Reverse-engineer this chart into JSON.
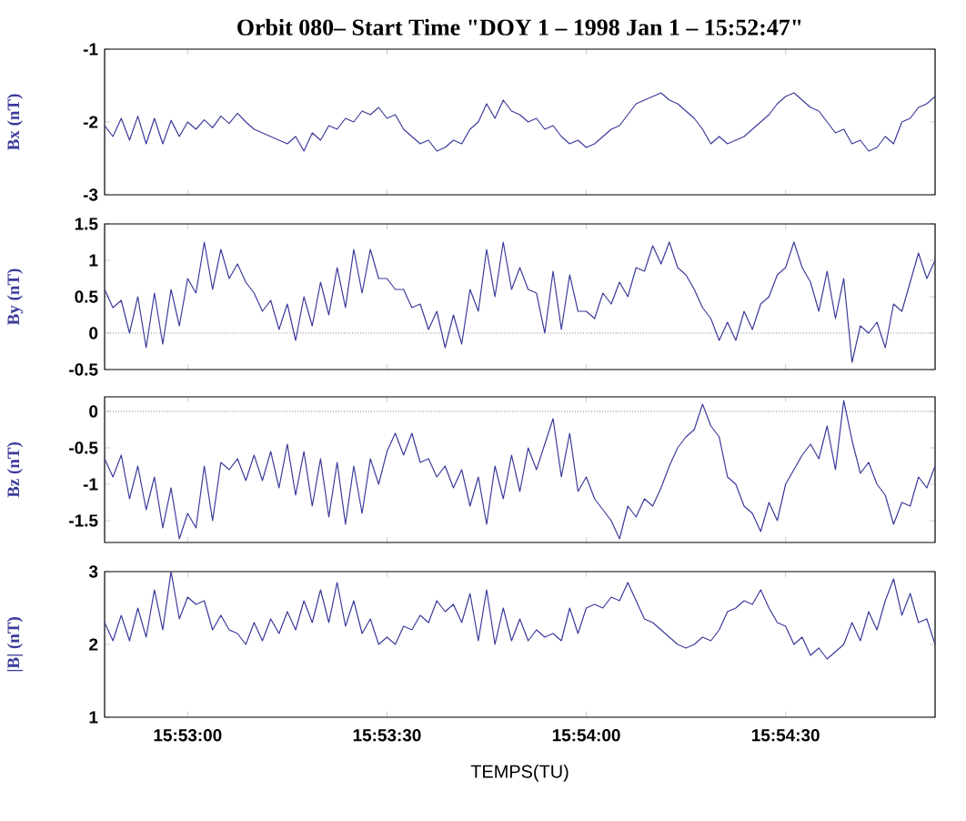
{
  "chart_data": [
    {
      "type": "line",
      "title": "Orbit 080– Start Time \"DOY 1 – 1998 Jan 1 – 15:52:47\"",
      "ylabel": "Bx (nT)",
      "color": "#3b3b9b",
      "tick_labels": "y",
      "xlim": [
        15.879861,
        15.914583
      ],
      "ylim": [
        -3,
        -1
      ],
      "yticks": [
        -3,
        -2,
        -1
      ],
      "xticks": [
        {
          "value": 15.883333,
          "label": null
        },
        {
          "value": 15.891667,
          "label": null
        },
        {
          "value": 15.9,
          "label": null
        },
        {
          "value": 15.908333,
          "label": null
        }
      ],
      "x": [
        15.879861,
        15.880208,
        15.880556,
        15.880903,
        15.88125,
        15.881597,
        15.881944,
        15.882292,
        15.882639,
        15.882986,
        15.883333,
        15.883681,
        15.884028,
        15.884375,
        15.884722,
        15.885069,
        15.885417,
        15.885764,
        15.886111,
        15.886458,
        15.886806,
        15.887153,
        15.8875,
        15.887847,
        15.888194,
        15.888542,
        15.888889,
        15.889236,
        15.889583,
        15.889931,
        15.890278,
        15.890625,
        15.890972,
        15.891319,
        15.891667,
        15.892014,
        15.892361,
        15.892708,
        15.893056,
        15.893403,
        15.89375,
        15.894097,
        15.894444,
        15.894792,
        15.895139,
        15.895486,
        15.895833,
        15.896181,
        15.896528,
        15.896875,
        15.897222,
        15.897569,
        15.897917,
        15.898264,
        15.898611,
        15.898958,
        15.899306,
        15.899653,
        15.9,
        15.900347,
        15.900694,
        15.901042,
        15.901389,
        15.901736,
        15.902083,
        15.902431,
        15.902778,
        15.903125,
        15.903472,
        15.903819,
        15.904167,
        15.904514,
        15.904861,
        15.905208,
        15.905556,
        15.905903,
        15.90625,
        15.906597,
        15.906944,
        15.907292,
        15.907639,
        15.907986,
        15.908333,
        15.908681,
        15.909028,
        15.909375,
        15.909722,
        15.910069,
        15.910417,
        15.910764,
        15.911111,
        15.911458,
        15.911806,
        15.912153,
        15.9125,
        15.912847,
        15.913194,
        15.913542,
        15.913889,
        15.914236,
        15.914583
      ],
      "values": [
        -2.05,
        -2.2,
        -1.95,
        -2.25,
        -1.92,
        -2.3,
        -1.95,
        -2.3,
        -1.98,
        -2.2,
        -2.0,
        -2.1,
        -1.97,
        -2.08,
        -1.92,
        -2.02,
        -1.88,
        -2.0,
        -2.1,
        -2.15,
        -2.2,
        -2.25,
        -2.3,
        -2.2,
        -2.4,
        -2.15,
        -2.25,
        -2.05,
        -2.1,
        -1.95,
        -2.0,
        -1.85,
        -1.9,
        -1.8,
        -1.95,
        -1.9,
        -2.1,
        -2.2,
        -2.3,
        -2.25,
        -2.4,
        -2.35,
        -2.25,
        -2.3,
        -2.1,
        -2.0,
        -1.75,
        -1.95,
        -1.7,
        -1.85,
        -1.9,
        -2.0,
        -1.95,
        -2.1,
        -2.05,
        -2.2,
        -2.3,
        -2.25,
        -2.35,
        -2.3,
        -2.2,
        -2.1,
        -2.05,
        -1.9,
        -1.75,
        -1.7,
        -1.65,
        -1.6,
        -1.7,
        -1.75,
        -1.85,
        -1.95,
        -2.1,
        -2.3,
        -2.2,
        -2.3,
        -2.25,
        -2.2,
        -2.1,
        -2.0,
        -1.9,
        -1.75,
        -1.65,
        -1.6,
        -1.7,
        -1.8,
        -1.85,
        -2.0,
        -2.15,
        -2.1,
        -2.3,
        -2.25,
        -2.4,
        -2.35,
        -2.2,
        -2.3,
        -2.0,
        -1.95,
        -1.8,
        -1.75,
        -1.65
      ]
    },
    {
      "type": "line",
      "ylabel": "By (nT)",
      "color": "#3b3b9b",
      "tick_labels": "y",
      "xlim": [
        15.879861,
        15.914583
      ],
      "ylim": [
        -0.5,
        1.5
      ],
      "yticks": [
        -0.5,
        0,
        0.5,
        1,
        1.5
      ],
      "xticks": [
        {
          "value": 15.883333,
          "label": null
        },
        {
          "value": 15.891667,
          "label": null
        },
        {
          "value": 15.9,
          "label": null
        },
        {
          "value": 15.908333,
          "label": null
        }
      ],
      "ref_lines": [
        {
          "axis": "y",
          "value": 0,
          "color": "#808080",
          "line_style": "dotted"
        }
      ],
      "x": [
        15.879861,
        15.880208,
        15.880556,
        15.880903,
        15.88125,
        15.881597,
        15.881944,
        15.882292,
        15.882639,
        15.882986,
        15.883333,
        15.883681,
        15.884028,
        15.884375,
        15.884722,
        15.885069,
        15.885417,
        15.885764,
        15.886111,
        15.886458,
        15.886806,
        15.887153,
        15.8875,
        15.887847,
        15.888194,
        15.888542,
        15.888889,
        15.889236,
        15.889583,
        15.889931,
        15.890278,
        15.890625,
        15.890972,
        15.891319,
        15.891667,
        15.892014,
        15.892361,
        15.892708,
        15.893056,
        15.893403,
        15.89375,
        15.894097,
        15.894444,
        15.894792,
        15.895139,
        15.895486,
        15.895833,
        15.896181,
        15.896528,
        15.896875,
        15.897222,
        15.897569,
        15.897917,
        15.898264,
        15.898611,
        15.898958,
        15.899306,
        15.899653,
        15.9,
        15.900347,
        15.900694,
        15.901042,
        15.901389,
        15.901736,
        15.902083,
        15.902431,
        15.902778,
        15.903125,
        15.903472,
        15.903819,
        15.904167,
        15.904514,
        15.904861,
        15.905208,
        15.905556,
        15.905903,
        15.90625,
        15.906597,
        15.906944,
        15.907292,
        15.907639,
        15.907986,
        15.908333,
        15.908681,
        15.909028,
        15.909375,
        15.909722,
        15.910069,
        15.910417,
        15.910764,
        15.911111,
        15.911458,
        15.911806,
        15.912153,
        15.9125,
        15.912847,
        15.913194,
        15.913542,
        15.913889,
        15.914236,
        15.914583
      ],
      "values": [
        0.6,
        0.35,
        0.45,
        0.0,
        0.5,
        -0.2,
        0.55,
        -0.15,
        0.6,
        0.1,
        0.75,
        0.55,
        1.25,
        0.6,
        1.15,
        0.75,
        0.95,
        0.7,
        0.55,
        0.3,
        0.45,
        0.05,
        0.4,
        -0.1,
        0.5,
        0.1,
        0.7,
        0.25,
        0.9,
        0.35,
        1.15,
        0.55,
        1.15,
        0.75,
        0.75,
        0.6,
        0.6,
        0.35,
        0.4,
        0.05,
        0.3,
        -0.2,
        0.25,
        -0.15,
        0.6,
        0.3,
        1.15,
        0.5,
        1.25,
        0.6,
        0.9,
        0.6,
        0.55,
        0.0,
        0.85,
        0.05,
        0.8,
        0.3,
        0.3,
        0.2,
        0.55,
        0.4,
        0.7,
        0.5,
        0.9,
        0.85,
        1.2,
        0.95,
        1.25,
        0.9,
        0.8,
        0.6,
        0.35,
        0.2,
        -0.1,
        0.15,
        -0.1,
        0.3,
        0.05,
        0.4,
        0.5,
        0.8,
        0.9,
        1.25,
        0.9,
        0.7,
        0.3,
        0.85,
        0.2,
        0.75,
        -0.4,
        0.1,
        0.0,
        0.15,
        -0.2,
        0.4,
        0.3,
        0.7,
        1.1,
        0.75,
        1.0
      ]
    },
    {
      "type": "line",
      "ylabel": "Bz (nT)",
      "color": "#3b3b9b",
      "tick_labels": "y",
      "xlim": [
        15.879861,
        15.914583
      ],
      "ylim": [
        -1.8,
        0.2
      ],
      "yticks": [
        -1.5,
        -1,
        -0.5,
        0
      ],
      "xticks": [
        {
          "value": 15.883333,
          "label": null
        },
        {
          "value": 15.891667,
          "label": null
        },
        {
          "value": 15.9,
          "label": null
        },
        {
          "value": 15.908333,
          "label": null
        }
      ],
      "ref_lines": [
        {
          "axis": "y",
          "value": 0,
          "color": "#808080",
          "line_style": "dotted"
        }
      ],
      "x": [
        15.879861,
        15.880208,
        15.880556,
        15.880903,
        15.88125,
        15.881597,
        15.881944,
        15.882292,
        15.882639,
        15.882986,
        15.883333,
        15.883681,
        15.884028,
        15.884375,
        15.884722,
        15.885069,
        15.885417,
        15.885764,
        15.886111,
        15.886458,
        15.886806,
        15.887153,
        15.8875,
        15.887847,
        15.888194,
        15.888542,
        15.888889,
        15.889236,
        15.889583,
        15.889931,
        15.890278,
        15.890625,
        15.890972,
        15.891319,
        15.891667,
        15.892014,
        15.892361,
        15.892708,
        15.893056,
        15.893403,
        15.89375,
        15.894097,
        15.894444,
        15.894792,
        15.895139,
        15.895486,
        15.895833,
        15.896181,
        15.896528,
        15.896875,
        15.897222,
        15.897569,
        15.897917,
        15.898264,
        15.898611,
        15.898958,
        15.899306,
        15.899653,
        15.9,
        15.900347,
        15.900694,
        15.901042,
        15.901389,
        15.901736,
        15.902083,
        15.902431,
        15.902778,
        15.903125,
        15.903472,
        15.903819,
        15.904167,
        15.904514,
        15.904861,
        15.905208,
        15.905556,
        15.905903,
        15.90625,
        15.906597,
        15.906944,
        15.907292,
        15.907639,
        15.907986,
        15.908333,
        15.908681,
        15.909028,
        15.909375,
        15.909722,
        15.910069,
        15.910417,
        15.910764,
        15.911111,
        15.911458,
        15.911806,
        15.912153,
        15.9125,
        15.912847,
        15.913194,
        15.913542,
        15.913889,
        15.914236,
        15.914583
      ],
      "values": [
        -0.65,
        -0.9,
        -0.6,
        -1.2,
        -0.75,
        -1.35,
        -0.9,
        -1.6,
        -1.05,
        -1.75,
        -1.4,
        -1.6,
        -0.75,
        -1.5,
        -0.7,
        -0.8,
        -0.65,
        -0.95,
        -0.6,
        -0.95,
        -0.55,
        -1.05,
        -0.45,
        -1.15,
        -0.55,
        -1.3,
        -0.65,
        -1.45,
        -0.7,
        -1.55,
        -0.75,
        -1.4,
        -0.65,
        -1.0,
        -0.55,
        -0.3,
        -0.6,
        -0.3,
        -0.7,
        -0.65,
        -0.9,
        -0.75,
        -1.05,
        -0.8,
        -1.3,
        -0.9,
        -1.55,
        -0.75,
        -1.2,
        -0.6,
        -1.1,
        -0.5,
        -0.8,
        -0.45,
        -0.1,
        -0.9,
        -0.3,
        -1.1,
        -0.9,
        -1.2,
        -1.35,
        -1.5,
        -1.75,
        -1.3,
        -1.45,
        -1.2,
        -1.3,
        -1.05,
        -0.75,
        -0.5,
        -0.35,
        -0.25,
        0.1,
        -0.2,
        -0.35,
        -0.9,
        -1.0,
        -1.3,
        -1.4,
        -1.65,
        -1.25,
        -1.5,
        -1.0,
        -0.8,
        -0.6,
        -0.45,
        -0.65,
        -0.2,
        -0.8,
        0.15,
        -0.4,
        -0.85,
        -0.7,
        -1.0,
        -1.15,
        -1.55,
        -1.25,
        -1.3,
        -0.9,
        -1.05,
        -0.75
      ]
    },
    {
      "type": "line",
      "ylabel": "|B| (nT)",
      "xlabel": "TEMPS(TU)",
      "color": "#3b3b9b",
      "xlim": [
        15.879861,
        15.914583
      ],
      "ylim": [
        1,
        3
      ],
      "yticks": [
        1,
        2,
        3
      ],
      "xticks": [
        {
          "value": 15.883333,
          "label": "15:53:00"
        },
        {
          "value": 15.891667,
          "label": "15:53:30"
        },
        {
          "value": 15.9,
          "label": "15:54:00"
        },
        {
          "value": 15.908333,
          "label": "15:54:30"
        }
      ],
      "x": [
        15.879861,
        15.880208,
        15.880556,
        15.880903,
        15.88125,
        15.881597,
        15.881944,
        15.882292,
        15.882639,
        15.882986,
        15.883333,
        15.883681,
        15.884028,
        15.884375,
        15.884722,
        15.885069,
        15.885417,
        15.885764,
        15.886111,
        15.886458,
        15.886806,
        15.887153,
        15.8875,
        15.887847,
        15.888194,
        15.888542,
        15.888889,
        15.889236,
        15.889583,
        15.889931,
        15.890278,
        15.890625,
        15.890972,
        15.891319,
        15.891667,
        15.892014,
        15.892361,
        15.892708,
        15.893056,
        15.893403,
        15.89375,
        15.894097,
        15.894444,
        15.894792,
        15.895139,
        15.895486,
        15.895833,
        15.896181,
        15.896528,
        15.896875,
        15.897222,
        15.897569,
        15.897917,
        15.898264,
        15.898611,
        15.898958,
        15.899306,
        15.899653,
        15.9,
        15.900347,
        15.900694,
        15.901042,
        15.901389,
        15.901736,
        15.902083,
        15.902431,
        15.902778,
        15.903125,
        15.903472,
        15.903819,
        15.904167,
        15.904514,
        15.904861,
        15.905208,
        15.905556,
        15.905903,
        15.90625,
        15.906597,
        15.906944,
        15.907292,
        15.907639,
        15.907986,
        15.908333,
        15.908681,
        15.909028,
        15.909375,
        15.909722,
        15.910069,
        15.910417,
        15.910764,
        15.911111,
        15.911458,
        15.911806,
        15.912153,
        15.9125,
        15.912847,
        15.913194,
        15.913542,
        15.913889,
        15.914236,
        15.914583
      ],
      "values": [
        2.3,
        2.05,
        2.4,
        2.05,
        2.5,
        2.1,
        2.75,
        2.2,
        3.0,
        2.35,
        2.65,
        2.55,
        2.6,
        2.2,
        2.4,
        2.2,
        2.15,
        2.0,
        2.3,
        2.05,
        2.35,
        2.15,
        2.45,
        2.2,
        2.6,
        2.3,
        2.75,
        2.3,
        2.85,
        2.25,
        2.6,
        2.15,
        2.35,
        2.0,
        2.1,
        2.0,
        2.25,
        2.2,
        2.4,
        2.3,
        2.6,
        2.45,
        2.55,
        2.3,
        2.7,
        2.05,
        2.75,
        2.0,
        2.5,
        2.05,
        2.35,
        2.05,
        2.2,
        2.1,
        2.15,
        2.05,
        2.5,
        2.15,
        2.5,
        2.55,
        2.5,
        2.65,
        2.6,
        2.85,
        2.6,
        2.35,
        2.3,
        2.2,
        2.1,
        2.0,
        1.95,
        2.0,
        2.1,
        2.05,
        2.2,
        2.45,
        2.5,
        2.6,
        2.55,
        2.75,
        2.5,
        2.3,
        2.25,
        2.0,
        2.1,
        1.85,
        1.95,
        1.8,
        1.9,
        2.0,
        2.3,
        2.05,
        2.45,
        2.2,
        2.6,
        2.9,
        2.4,
        2.7,
        2.3,
        2.35,
        2.0
      ]
    }
  ]
}
